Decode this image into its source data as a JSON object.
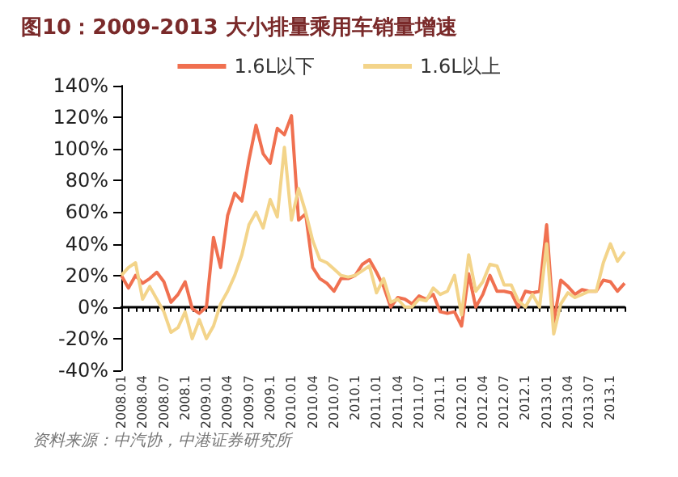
{
  "chart_data": {
    "type": "line",
    "title": "图10：2009-2013 大小排量乘用车销量增速",
    "categories": [
      "2008.01",
      null,
      null,
      "2008.04",
      null,
      null,
      "2008.07",
      null,
      null,
      "2008.1",
      null,
      null,
      "2009.01",
      null,
      null,
      "2009.04",
      null,
      null,
      "2009.07",
      null,
      null,
      "2009.1",
      null,
      null,
      "2010.01",
      null,
      null,
      "2010.04",
      null,
      null,
      "2010.07",
      null,
      null,
      "2010.1",
      null,
      null,
      "2011.01",
      null,
      null,
      "2011.04",
      null,
      null,
      "2011.07",
      null,
      null,
      "2011.1",
      null,
      null,
      "2012.01",
      null,
      null,
      "2012.04",
      null,
      null,
      "2012.07",
      null,
      null,
      "2012.1",
      null,
      null,
      "2013.01",
      null,
      null,
      "2013.04",
      null,
      null,
      "2013.07",
      null,
      null,
      "2013.1",
      null,
      null
    ],
    "series": [
      {
        "name": "1.6L以下",
        "color": "#f07050",
        "values": [
          20,
          12,
          20,
          15,
          18,
          22,
          16,
          3,
          8,
          16,
          -1,
          -4,
          0,
          44,
          25,
          58,
          72,
          67,
          93,
          115,
          97,
          91,
          113,
          109,
          121,
          55,
          59,
          25,
          18,
          15,
          10,
          18,
          18,
          20,
          27,
          30,
          22,
          13,
          0,
          6,
          5,
          2,
          7,
          5,
          8,
          -3,
          -4,
          -3,
          -12,
          21,
          0,
          8,
          20,
          10,
          10,
          9,
          0,
          10,
          9,
          10,
          52,
          -10,
          17,
          13,
          8,
          11,
          10,
          10,
          17,
          16,
          10,
          15
        ]
      },
      {
        "name": "1.6L以上",
        "color": "#f3d48a",
        "values": [
          20,
          25,
          28,
          5,
          13,
          5,
          -3,
          -16,
          -13,
          -3,
          -20,
          -8,
          -20,
          -12,
          2,
          10,
          20,
          33,
          52,
          60,
          50,
          68,
          57,
          101,
          55,
          75,
          60,
          42,
          30,
          28,
          24,
          20,
          19,
          20,
          23,
          26,
          9,
          18,
          3,
          5,
          0,
          0,
          5,
          4,
          12,
          8,
          10,
          20,
          -5,
          33,
          10,
          16,
          27,
          26,
          14,
          14,
          4,
          0,
          8,
          0,
          40,
          -17,
          2,
          9,
          6,
          8,
          10,
          10,
          28,
          40,
          29,
          35
        ]
      }
    ],
    "ylim": [
      -40,
      140
    ],
    "yticks": [
      {
        "value": -40,
        "label": "-40%"
      },
      {
        "value": -20,
        "label": "-20%"
      },
      {
        "value": 0,
        "label": "0%"
      },
      {
        "value": 20,
        "label": "20%"
      },
      {
        "value": 40,
        "label": "40%"
      },
      {
        "value": 60,
        "label": "60%"
      },
      {
        "value": 80,
        "label": "80%"
      },
      {
        "value": 100,
        "label": "100%"
      },
      {
        "value": 120,
        "label": "120%"
      },
      {
        "value": 140,
        "label": "140%"
      }
    ],
    "legend": "top",
    "marker": "none",
    "line_style": "solid",
    "annotations": [
      "资料来源：中汽协，中港证券研究所"
    ]
  }
}
